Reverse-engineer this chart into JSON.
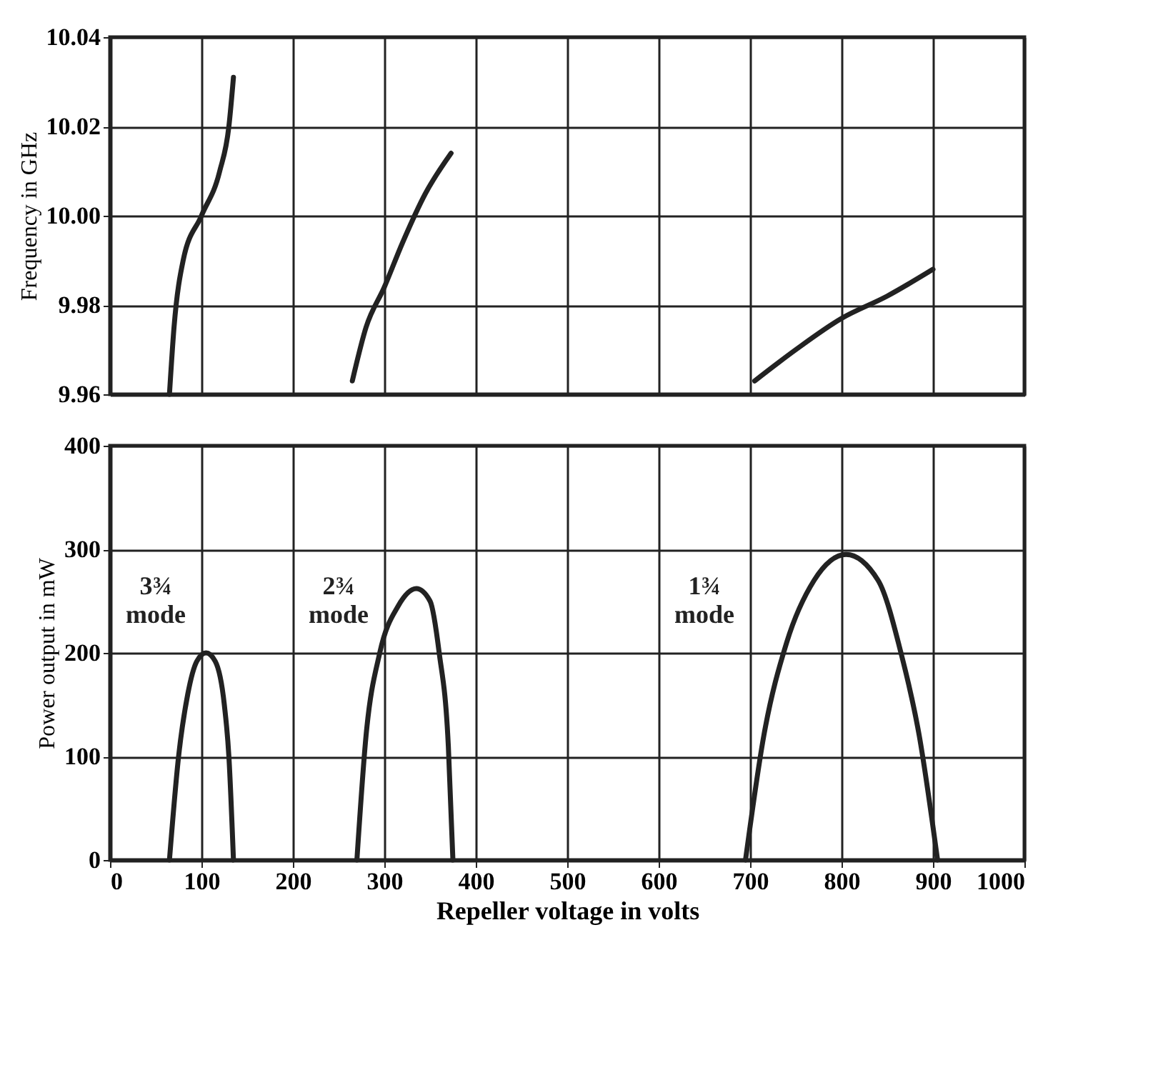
{
  "chart_data": [
    {
      "type": "line",
      "ylabel": "Frequency in GHz",
      "xlim": [
        0,
        1000
      ],
      "xticks": [
        0,
        100,
        200,
        300,
        400,
        500,
        600,
        700,
        800,
        900,
        1000
      ],
      "ylim": [
        9.96,
        10.04
      ],
      "yticks": [
        9.96,
        9.98,
        {
          "value": 10,
          "label": "10.00"
        },
        10.02,
        10.04
      ],
      "tick_labels": "y",
      "grid": true,
      "line_style": "solid",
      "series": [
        {
          "color": "#222222",
          "x": [
            65,
            70,
            80,
            100,
            120,
            130,
            135
          ],
          "values": [
            9.96,
            9.975,
            9.99,
            10.0,
            10.01,
            10.02,
            10.031
          ]
        },
        {
          "color": "#222222",
          "x": [
            265,
            280,
            300,
            320,
            345,
            373
          ],
          "values": [
            9.963,
            9.975,
            9.984,
            9.994,
            10.005,
            10.014
          ]
        },
        {
          "color": "#222222",
          "x": [
            705,
            750,
            800,
            850,
            900
          ],
          "values": [
            9.963,
            9.97,
            9.977,
            9.982,
            9.988
          ]
        }
      ]
    },
    {
      "type": "line",
      "xlabel": "Repeller voltage in volts",
      "ylabel": "Power output in mW",
      "xlim": [
        0,
        1000
      ],
      "xticks": [
        0,
        100,
        200,
        300,
        400,
        500,
        600,
        700,
        800,
        900,
        1000
      ],
      "ylim": [
        0,
        400
      ],
      "yticks": [
        0,
        100,
        200,
        300,
        400
      ],
      "grid": true,
      "line_style": "solid",
      "annotations": [
        "3¾ mode",
        "2¾ mode",
        "1¾ mode"
      ],
      "series": [
        {
          "color": "#222222",
          "x": [
            65,
            75,
            85,
            95,
            105,
            115,
            125,
            130,
            135
          ],
          "values": [
            0,
            100,
            160,
            192,
            200,
            192,
            150,
            100,
            0
          ]
        },
        {
          "color": "#222222",
          "x": [
            270,
            280,
            295,
            315,
            335,
            350,
            360,
            370,
            375
          ],
          "values": [
            0,
            120,
            200,
            245,
            262,
            250,
            200,
            110,
            0
          ]
        },
        {
          "color": "#222222",
          "x": [
            695,
            715,
            740,
            770,
            805,
            840,
            865,
            885,
            905
          ],
          "values": [
            0,
            120,
            210,
            270,
            295,
            270,
            200,
            120,
            0
          ]
        }
      ]
    }
  ]
}
